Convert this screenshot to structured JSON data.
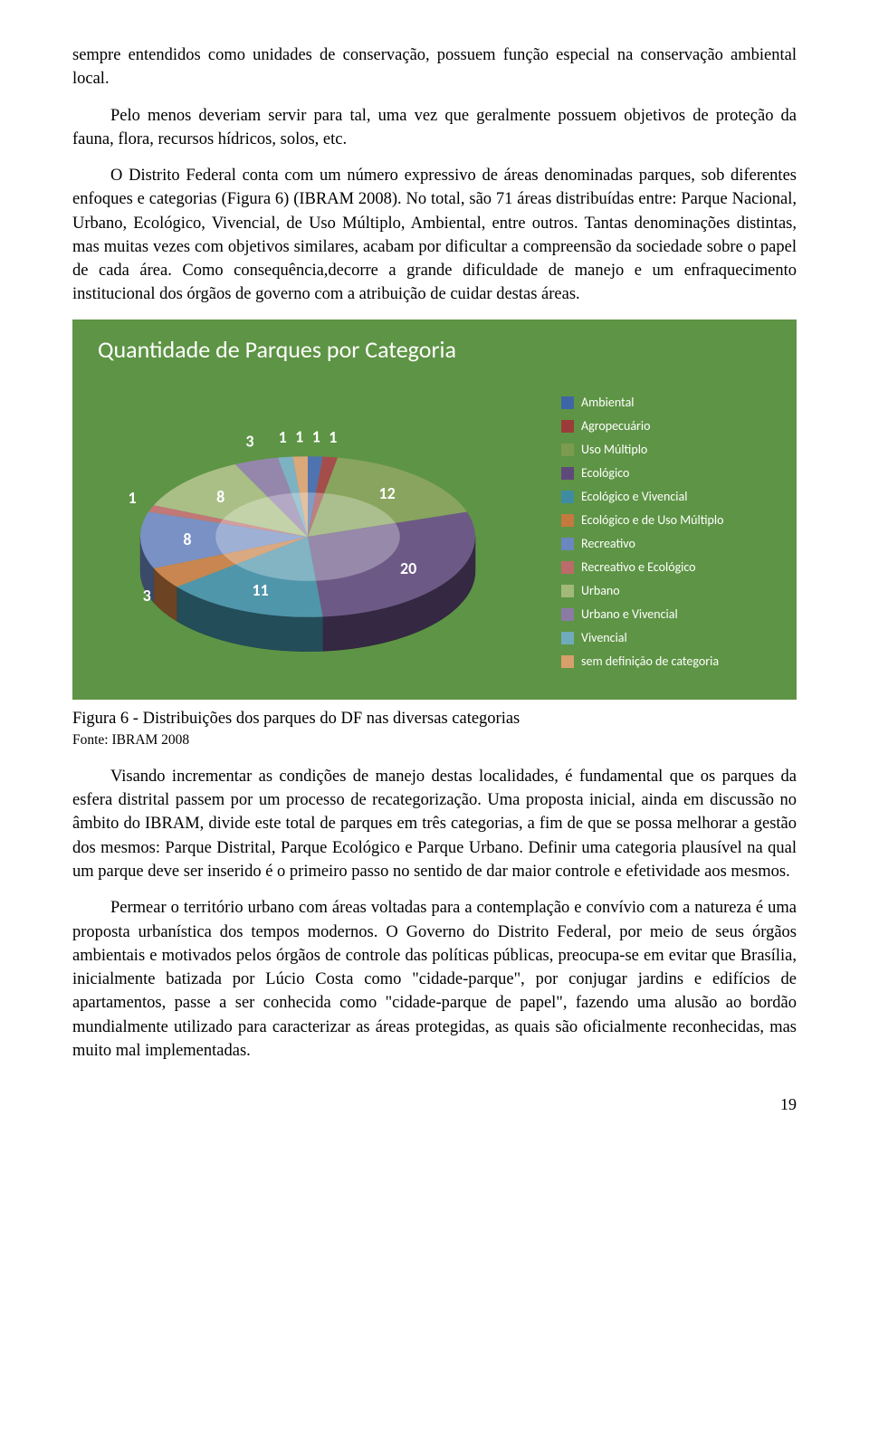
{
  "paragraphs": {
    "p1": "sempre entendidos como unidades de conservação, possuem função especial na conservação ambiental local.",
    "p2": "Pelo menos deveriam servir para tal, uma vez que geralmente possuem objetivos de proteção da fauna, flora, recursos hídricos, solos, etc.",
    "p3": "O Distrito Federal conta com um número expressivo de áreas denominadas parques, sob diferentes enfoques e categorias (Figura 6) (IBRAM 2008). No total, são 71 áreas distribuídas entre: Parque Nacional, Urbano, Ecológico, Vivencial, de Uso Múltiplo, Ambiental, entre outros. Tantas denominações distintas, mas muitas vezes com objetivos similares, acabam por dificultar a compreensão da sociedade sobre o papel de cada área. Como consequência,decorre a grande dificuldade de manejo e um enfraquecimento institucional dos órgãos de governo com a atribuição de cuidar destas áreas.",
    "caption": "Figura 6 - Distribuições dos parques do DF nas diversas categorias",
    "source": "Fonte: IBRAM 2008",
    "p4": "Visando incrementar as condições de manejo destas localidades, é fundamental que os parques da esfera distrital passem por um processo de recategorização. Uma proposta inicial, ainda em discussão no âmbito do IBRAM, divide este total de parques em três categorias, a fim de que se possa melhorar a gestão dos mesmos: Parque Distrital, Parque Ecológico e Parque Urbano. Definir uma categoria plausível na qual um parque deve ser inserido é o primeiro passo no sentido de dar maior controle e efetividade aos mesmos.",
    "p5": "Permear o território urbano com áreas voltadas para a contemplação e convívio com a natureza é uma proposta urbanística dos tempos modernos. O Governo do Distrito Federal, por meio de seus órgãos ambientais e motivados pelos órgãos de controle das políticas públicas, preocupa-se em evitar que Brasília, inicialmente batizada por Lúcio Costa como \"cidade-parque\", por conjugar jardins e edifícios de apartamentos, passe a ser conhecida como \"cidade-parque de papel\", fazendo uma alusão ao bordão mundialmente utilizado para caracterizar as áreas protegidas, as quais são oficialmente reconhecidas, mas muito mal implementadas.",
    "pagenum": "19"
  },
  "chart": {
    "type": "pie",
    "title": "Quantidade de Parques por Categoria",
    "title_fontsize": 26,
    "title_color": "#ffffff",
    "background_color": "#5e9445",
    "legend_text_color": "#ffffff",
    "legend_font_family": "Calibri",
    "legend_fontsize": 14,
    "label_fontsize": 18,
    "label_color": "#ffffff",
    "slices": [
      {
        "label": "Ambiental",
        "value": 1,
        "color": "#3e66a7"
      },
      {
        "label": "Agropecuário",
        "value": 1,
        "color": "#9b3c3a"
      },
      {
        "label": "Uso Múltiplo",
        "value": 12,
        "color": "#7d9b4f"
      },
      {
        "label": "Ecológico",
        "value": 20,
        "color": "#5f497a"
      },
      {
        "label": "Ecológico e Vivencial",
        "value": 11,
        "color": "#3f8ca2"
      },
      {
        "label": "Ecológico e de Uso Múltiplo",
        "value": 3,
        "color": "#c47a3f"
      },
      {
        "label": "Recreativo",
        "value": 8,
        "color": "#6c86bf"
      },
      {
        "label": "Recreativo e Ecológico",
        "value": 1,
        "color": "#bb6b6a"
      },
      {
        "label": "Urbano",
        "value": 8,
        "color": "#a2b97a"
      },
      {
        "label": "Urbano e Vivencial",
        "value": 3,
        "color": "#8b7ba4"
      },
      {
        "label": "Vivencial",
        "value": 1,
        "color": "#70abbd"
      },
      {
        "label": "sem definição de categoria",
        "value": 1,
        "color": "#d6a06c"
      }
    ],
    "start_angle_deg": -90,
    "tilt_ry_over_rx": 0.48,
    "pie_rx": 185,
    "depth": 38,
    "highlight_alpha": 0.35,
    "side_darken": 0.55
  }
}
